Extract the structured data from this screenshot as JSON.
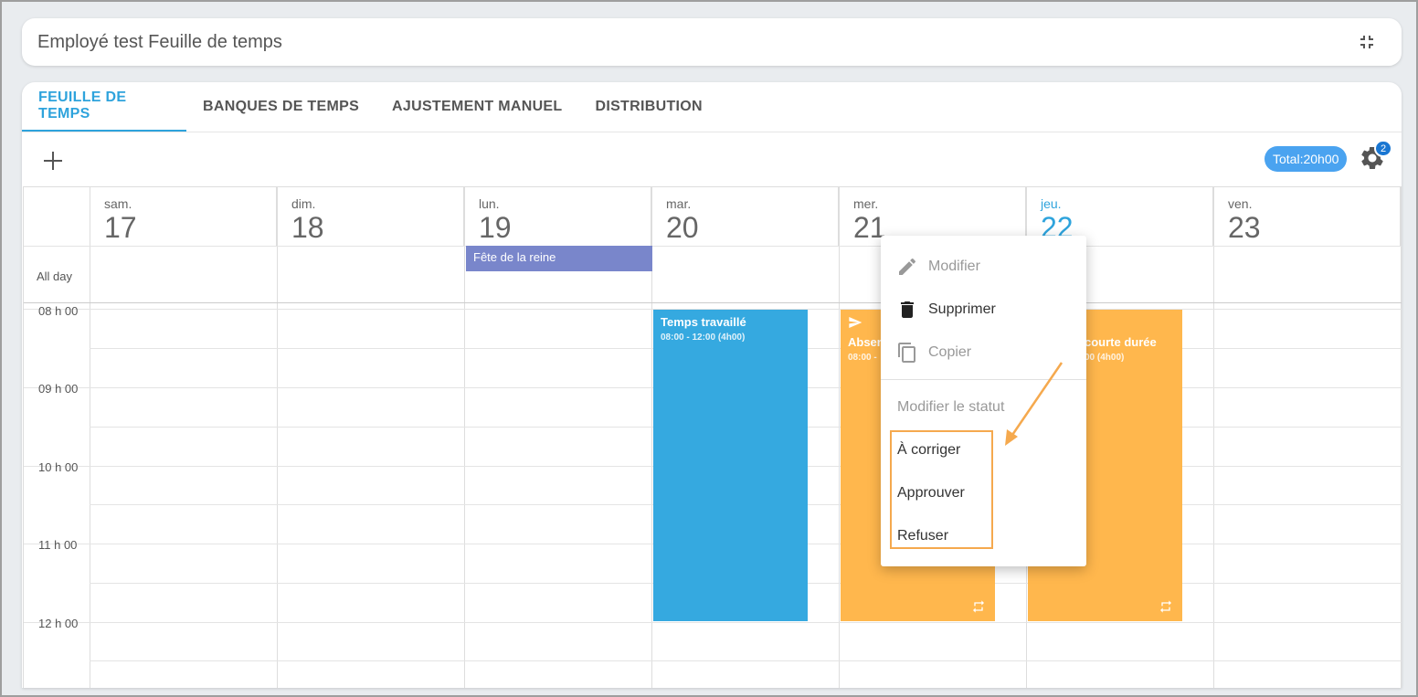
{
  "header": {
    "title": "Employé test Feuille de temps",
    "collapse_icon": "collapse-icon"
  },
  "tabs": [
    {
      "label": "FEUILLE DE TEMPS",
      "active": true
    },
    {
      "label": "BANQUES DE TEMPS",
      "active": false
    },
    {
      "label": "AJUSTEMENT MANUEL",
      "active": false
    },
    {
      "label": "DISTRIBUTION",
      "active": false
    }
  ],
  "toolbar": {
    "add_icon": "plus-icon",
    "total": "Total:20h00",
    "settings_icon": "gear-icon",
    "settings_badge": "2"
  },
  "calendar": {
    "days": [
      {
        "dow": "sam.",
        "num": "17"
      },
      {
        "dow": "dim.",
        "num": "18"
      },
      {
        "dow": "lun.",
        "num": "19"
      },
      {
        "dow": "mar.",
        "num": "20"
      },
      {
        "dow": "mer.",
        "num": "21"
      },
      {
        "dow": "jeu.",
        "num": "22",
        "today": true
      },
      {
        "dow": "ven.",
        "num": "23"
      }
    ],
    "allday_label": "All day",
    "times": [
      "08 h 00",
      "09 h 00",
      "10 h 00",
      "11 h 00",
      "12 h 00"
    ],
    "holiday": "Fête de la reine",
    "events": [
      {
        "title": "Temps travaillé",
        "time": "08:00 - 12:00 (4h00)",
        "color": "#35a9e0"
      },
      {
        "title": "Absen",
        "time": "08:00 -",
        "color": "#ffb74d"
      },
      {
        "title": "courte durée",
        "time": "00 (4h00)",
        "color": "#ffb74d"
      }
    ]
  },
  "context_menu": {
    "modify": "Modifier",
    "delete": "Supprimer",
    "copy": "Copier",
    "status_header": "Modifier le statut",
    "to_correct": "À corriger",
    "approve": "Approuver",
    "refuse": "Refuser"
  },
  "colors": {
    "accent": "#2ea3dc",
    "highlight": "#f5a94e",
    "holiday": "#7986cb"
  }
}
